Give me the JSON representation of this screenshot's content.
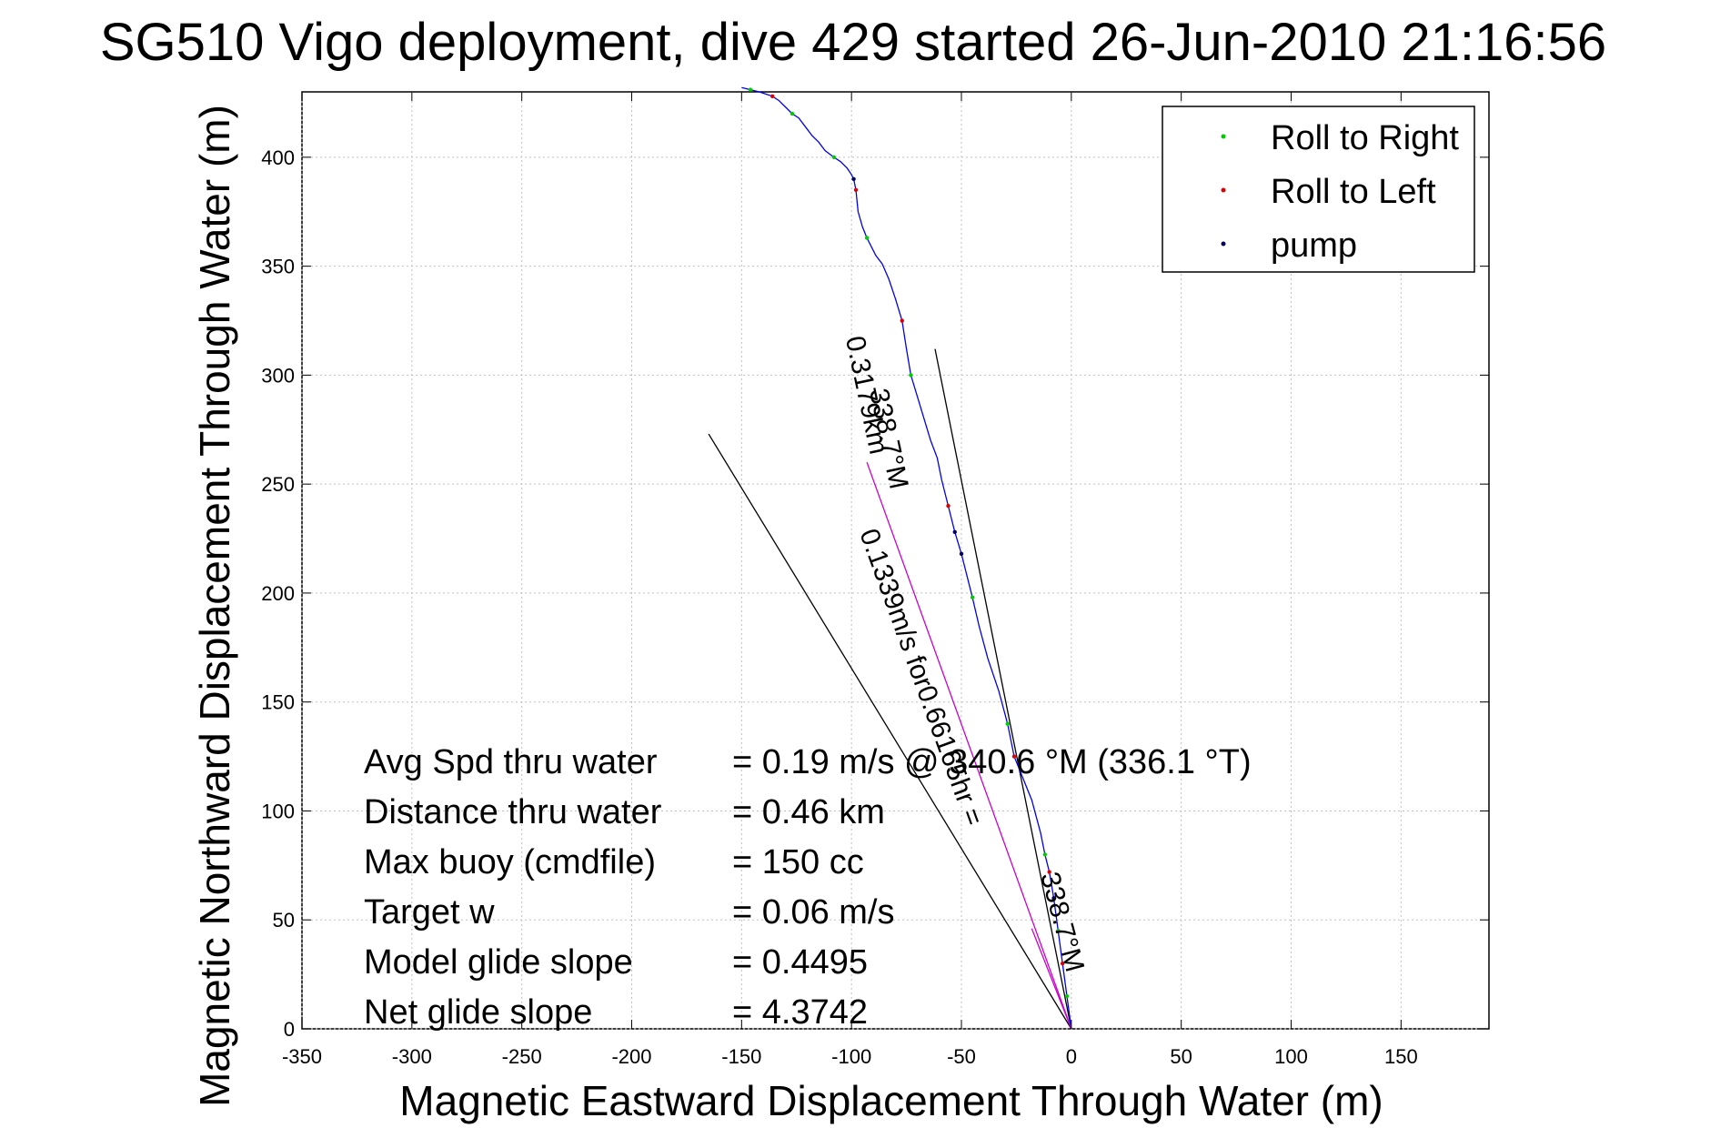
{
  "chart_data": {
    "type": "line",
    "title": "SG510 Vigo deployment, dive 429 started 26-Jun-2010 21:16:56",
    "xlabel": "Magnetic Eastward Displacement Through Water (m)",
    "ylabel": "Magnetic Northward Displacement Through Water (m)",
    "xlim": [
      -350,
      190
    ],
    "ylim": [
      0,
      430
    ],
    "xticks": [
      -350,
      -300,
      -250,
      -200,
      -150,
      -100,
      -50,
      0,
      50,
      100,
      150
    ],
    "yticks": [
      0,
      50,
      100,
      150,
      200,
      250,
      300,
      350,
      400
    ],
    "grid": true,
    "legend_position": "top-right",
    "legend": [
      {
        "label": "Roll to Right",
        "color": "#00cc00"
      },
      {
        "label": "Roll to Left",
        "color": "#dd0000"
      },
      {
        "label": "pump",
        "color": "#000066"
      }
    ],
    "series": [
      {
        "color": "#0000ee",
        "x": [
          0,
          -2,
          -4,
          -6,
          -8,
          -10,
          -12,
          -14,
          -18,
          -22,
          -26,
          -29,
          -33,
          -38,
          -42,
          -45,
          -48,
          -50,
          -53,
          -56,
          -59,
          -61,
          -64,
          -67,
          -70,
          -73,
          -75,
          -77,
          -80,
          -83,
          -86,
          -89,
          -91,
          -93,
          -95,
          -97,
          -98,
          -99,
          -100,
          -102,
          -105,
          -108,
          -112,
          -115,
          -118,
          -121,
          -124,
          -127,
          -130,
          -133,
          -136,
          -139,
          -142,
          -146,
          -150
        ],
        "y": [
          0,
          15,
          30,
          45,
          60,
          72,
          80,
          90,
          105,
          115,
          125,
          140,
          155,
          170,
          185,
          198,
          210,
          218,
          228,
          240,
          252,
          262,
          270,
          280,
          290,
          300,
          312,
          325,
          335,
          344,
          351,
          355,
          359,
          363,
          368,
          375,
          385,
          390,
          392,
          395,
          398,
          400,
          403,
          407,
          410,
          414,
          418,
          420,
          423,
          426,
          428,
          429,
          430,
          431,
          432
        ]
      }
    ],
    "markers": {
      "roll_right": [
        [
          -2,
          15
        ],
        [
          -6,
          45
        ],
        [
          -12,
          80
        ],
        [
          -29,
          140
        ],
        [
          -45,
          198
        ],
        [
          -73,
          300
        ],
        [
          -93,
          363
        ],
        [
          -108,
          400
        ],
        [
          -127,
          420
        ],
        [
          -146,
          431
        ]
      ],
      "roll_left": [
        [
          -4,
          30
        ],
        [
          -10,
          72
        ],
        [
          -26,
          125
        ],
        [
          -56,
          240
        ],
        [
          -77,
          325
        ],
        [
          -98,
          385
        ],
        [
          -136,
          428
        ]
      ],
      "pump": [
        [
          -8,
          60
        ],
        [
          -50,
          218
        ],
        [
          -53,
          228
        ],
        [
          -99,
          390
        ]
      ]
    },
    "reference_lines": [
      {
        "from": [
          0,
          0
        ],
        "to": [
          -165,
          273
        ]
      },
      {
        "from": [
          0,
          0
        ],
        "to": [
          -62,
          312
        ]
      },
      {
        "from": [
          0,
          0
        ],
        "to": [
          -93,
          260
        ],
        "color": "#cc00cc"
      },
      {
        "from": [
          0,
          0
        ],
        "to": [
          -18,
          46
        ],
        "color": "#cc00cc"
      }
    ],
    "annotations": [
      {
        "text": "0.3179km",
        "at": [
          -97,
          290
        ],
        "angle": 78
      },
      {
        "text": "338.7°M",
        "at": [
          -87,
          270
        ],
        "angle": 78
      },
      {
        "text": "0.1339m/s for0.66165hr =",
        "at": [
          -72,
          160
        ],
        "angle": 70
      },
      {
        "text": "338.7°M",
        "at": [
          -8,
          48
        ],
        "angle": 75
      }
    ],
    "stats": [
      {
        "label": "Avg Spd thru water",
        "value": "=  0.19 m/s @ 340.6 °M (336.1 °T)"
      },
      {
        "label": "Distance thru water",
        "value": "=  0.46 km"
      },
      {
        "label": "Max buoy (cmdfile)",
        "value": "= 150 cc"
      },
      {
        "label": "Target w",
        "value": "= 0.06 m/s"
      },
      {
        "label": "Model glide slope",
        "value": "= 0.4495"
      },
      {
        "label": "Net glide slope",
        "value": "= 4.3742"
      }
    ]
  }
}
